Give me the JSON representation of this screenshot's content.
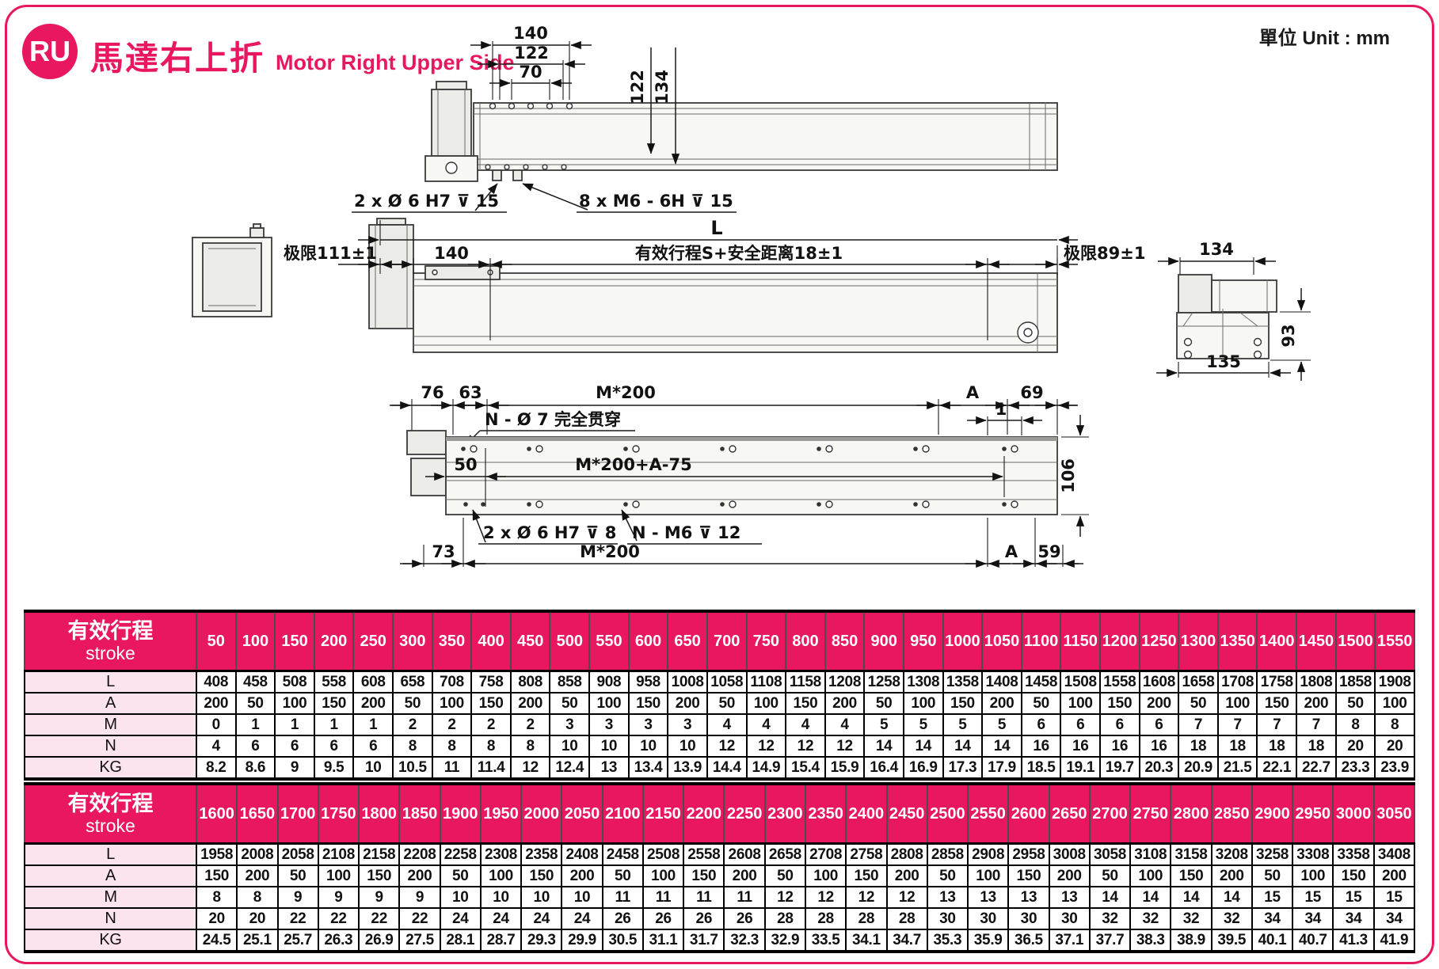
{
  "colors": {
    "accent_pink": "#e8175f",
    "table_header_bg": "#e8175f",
    "row_label_bg": "#fce4ee"
  },
  "header": {
    "badge": "RU",
    "title_zh": "馬達右上折",
    "title_en": "Motor Right Upper Side",
    "unit_label": "單位 Unit : mm"
  },
  "drawing": {
    "top": {
      "d140": "140",
      "d122": "122",
      "d70": "70",
      "d122v": "122",
      "d134v": "134",
      "note_pin": "2 x Ø 6 H7 ⊽ 15",
      "note_tap": "8 x M6 - 6H ⊽ 15"
    },
    "front": {
      "dL": "L",
      "limit_left": "极限111±1",
      "d140": "140",
      "stroke_span": "有效行程S+安全距离18±1",
      "limit_right": "极限89±1",
      "d134": "134",
      "d93": "93",
      "d135": "135"
    },
    "bottom": {
      "d76": "76",
      "d63": "63",
      "dm200_top": "M*200",
      "dA_top": "A",
      "d69": "69",
      "d1": "1",
      "note_holes": "N - Ø 7 完全贯穿",
      "d50": "50",
      "dm200a": "M*200+A-75",
      "d106": "106",
      "note_pin": "2 x Ø 6 H7 ⊽ 8",
      "note_tap": "N - M6 ⊽ 12",
      "d73": "73",
      "dm200_bot": "M*200",
      "dA_bot": "A",
      "d59": "59"
    }
  },
  "tables": [
    {
      "header_zh": "有效行程",
      "header_en": "stroke",
      "strokes": [
        "50",
        "100",
        "150",
        "200",
        "250",
        "300",
        "350",
        "400",
        "450",
        "500",
        "550",
        "600",
        "650",
        "700",
        "750",
        "800",
        "850",
        "900",
        "950",
        "1000",
        "1050",
        "1100",
        "1150",
        "1200",
        "1250",
        "1300",
        "1350",
        "1400",
        "1450",
        "1500",
        "1550"
      ],
      "rows": [
        {
          "label": "L",
          "values": [
            "408",
            "458",
            "508",
            "558",
            "608",
            "658",
            "708",
            "758",
            "808",
            "858",
            "908",
            "958",
            "1008",
            "1058",
            "1108",
            "1158",
            "1208",
            "1258",
            "1308",
            "1358",
            "1408",
            "1458",
            "1508",
            "1558",
            "1608",
            "1658",
            "1708",
            "1758",
            "1808",
            "1858",
            "1908"
          ]
        },
        {
          "label": "A",
          "values": [
            "200",
            "50",
            "100",
            "150",
            "200",
            "50",
            "100",
            "150",
            "200",
            "50",
            "100",
            "150",
            "200",
            "50",
            "100",
            "150",
            "200",
            "50",
            "100",
            "150",
            "200",
            "50",
            "100",
            "150",
            "200",
            "50",
            "100",
            "150",
            "200",
            "50",
            "100"
          ]
        },
        {
          "label": "M",
          "values": [
            "0",
            "1",
            "1",
            "1",
            "1",
            "2",
            "2",
            "2",
            "2",
            "3",
            "3",
            "3",
            "3",
            "4",
            "4",
            "4",
            "4",
            "5",
            "5",
            "5",
            "5",
            "6",
            "6",
            "6",
            "6",
            "7",
            "7",
            "7",
            "7",
            "8",
            "8"
          ]
        },
        {
          "label": "N",
          "values": [
            "4",
            "6",
            "6",
            "6",
            "6",
            "8",
            "8",
            "8",
            "8",
            "10",
            "10",
            "10",
            "10",
            "12",
            "12",
            "12",
            "12",
            "14",
            "14",
            "14",
            "14",
            "16",
            "16",
            "16",
            "16",
            "18",
            "18",
            "18",
            "18",
            "20",
            "20"
          ]
        },
        {
          "label": "KG",
          "values": [
            "8.2",
            "8.6",
            "9",
            "9.5",
            "10",
            "10.5",
            "11",
            "11.4",
            "12",
            "12.4",
            "13",
            "13.4",
            "13.9",
            "14.4",
            "14.9",
            "15.4",
            "15.9",
            "16.4",
            "16.9",
            "17.3",
            "17.9",
            "18.5",
            "19.1",
            "19.7",
            "20.3",
            "20.9",
            "21.5",
            "22.1",
            "22.7",
            "23.3",
            "23.9"
          ]
        }
      ]
    },
    {
      "header_zh": "有效行程",
      "header_en": "stroke",
      "strokes": [
        "1600",
        "1650",
        "1700",
        "1750",
        "1800",
        "1850",
        "1900",
        "1950",
        "2000",
        "2050",
        "2100",
        "2150",
        "2200",
        "2250",
        "2300",
        "2350",
        "2400",
        "2450",
        "2500",
        "2550",
        "2600",
        "2650",
        "2700",
        "2750",
        "2800",
        "2850",
        "2900",
        "2950",
        "3000",
        "3050"
      ],
      "rows": [
        {
          "label": "L",
          "values": [
            "1958",
            "2008",
            "2058",
            "2108",
            "2158",
            "2208",
            "2258",
            "2308",
            "2358",
            "2408",
            "2458",
            "2508",
            "2558",
            "2608",
            "2658",
            "2708",
            "2758",
            "2808",
            "2858",
            "2908",
            "2958",
            "3008",
            "3058",
            "3108",
            "3158",
            "3208",
            "3258",
            "3308",
            "3358",
            "3408"
          ]
        },
        {
          "label": "A",
          "values": [
            "150",
            "200",
            "50",
            "100",
            "150",
            "200",
            "50",
            "100",
            "150",
            "200",
            "50",
            "100",
            "150",
            "200",
            "50",
            "100",
            "150",
            "200",
            "50",
            "100",
            "150",
            "200",
            "50",
            "100",
            "150",
            "200",
            "50",
            "100",
            "150",
            "200"
          ]
        },
        {
          "label": "M",
          "values": [
            "8",
            "8",
            "9",
            "9",
            "9",
            "9",
            "10",
            "10",
            "10",
            "10",
            "11",
            "11",
            "11",
            "11",
            "12",
            "12",
            "12",
            "12",
            "13",
            "13",
            "13",
            "13",
            "14",
            "14",
            "14",
            "14",
            "15",
            "15",
            "15",
            "15"
          ]
        },
        {
          "label": "N",
          "values": [
            "20",
            "20",
            "22",
            "22",
            "22",
            "22",
            "24",
            "24",
            "24",
            "24",
            "26",
            "26",
            "26",
            "26",
            "28",
            "28",
            "28",
            "28",
            "30",
            "30",
            "30",
            "30",
            "32",
            "32",
            "32",
            "32",
            "34",
            "34",
            "34",
            "34"
          ]
        },
        {
          "label": "KG",
          "values": [
            "24.5",
            "25.1",
            "25.7",
            "26.3",
            "26.9",
            "27.5",
            "28.1",
            "28.7",
            "29.3",
            "29.9",
            "30.5",
            "31.1",
            "31.7",
            "32.3",
            "32.9",
            "33.5",
            "34.1",
            "34.7",
            "35.3",
            "35.9",
            "36.5",
            "37.1",
            "37.7",
            "38.3",
            "38.9",
            "39.5",
            "40.1",
            "40.7",
            "41.3",
            "41.9"
          ]
        }
      ]
    }
  ]
}
